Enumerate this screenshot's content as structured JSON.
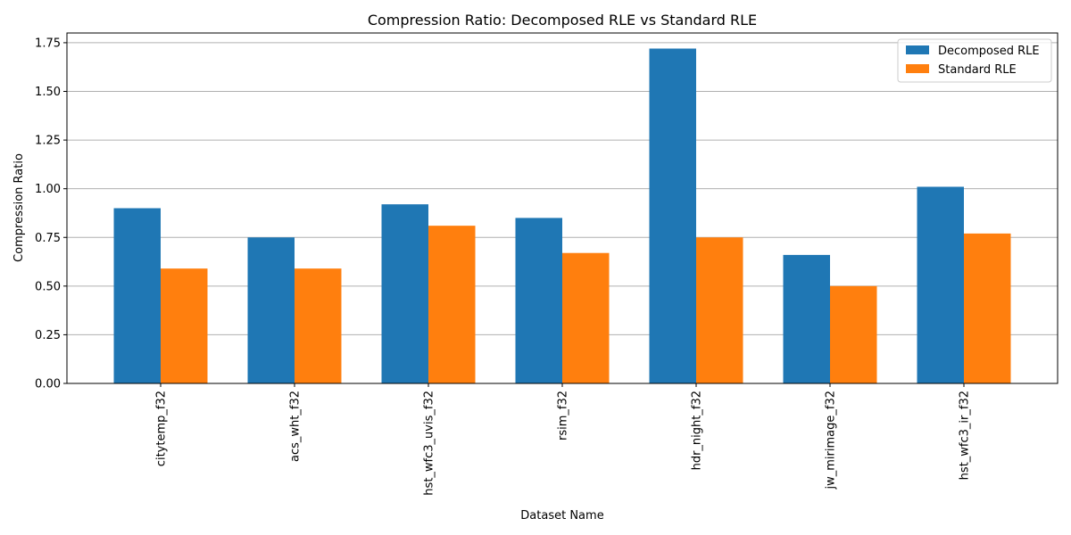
{
  "chart_data": {
    "type": "bar",
    "title": "Compression Ratio: Decomposed RLE vs Standard RLE",
    "xlabel": "Dataset Name",
    "ylabel": "Compression Ratio",
    "categories": [
      "citytemp_f32",
      "acs_wht_f32",
      "hst_wfc3_uvis_f32",
      "rsim_f32",
      "hdr_night_f32",
      "jw_mirimage_f32",
      "hst_wfc3_ir_f32"
    ],
    "series": [
      {
        "name": "Decomposed RLE",
        "color": "#1f77b4",
        "values": [
          0.9,
          0.75,
          0.92,
          0.85,
          1.72,
          0.66,
          1.01
        ]
      },
      {
        "name": "Standard RLE",
        "color": "#ff7f0e",
        "values": [
          0.59,
          0.59,
          0.81,
          0.67,
          0.75,
          0.5,
          0.77
        ]
      }
    ],
    "ylim": [
      0,
      1.8
    ],
    "yticks": [
      "0.00",
      "0.25",
      "0.50",
      "0.75",
      "1.00",
      "1.25",
      "1.50",
      "1.75"
    ],
    "grid": "y",
    "legend_position": "top-right"
  }
}
